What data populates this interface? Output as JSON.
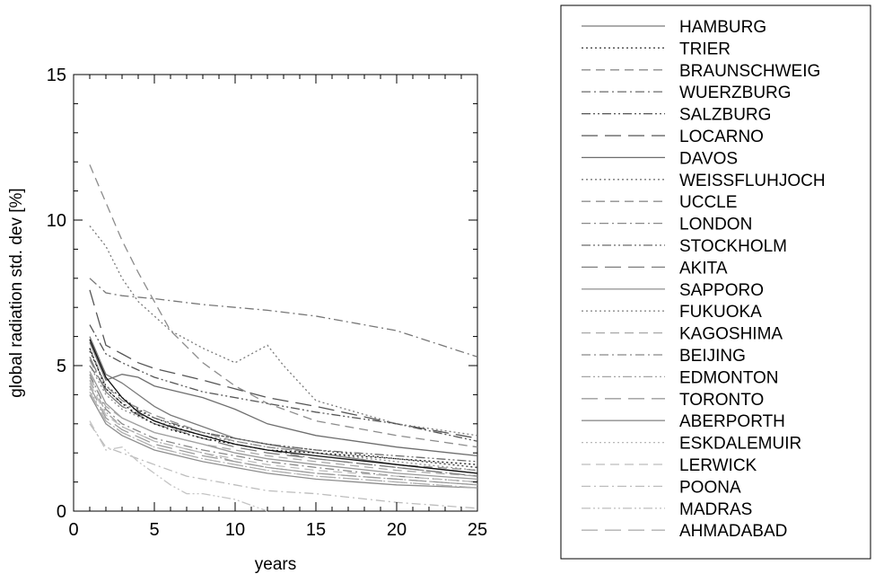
{
  "chart_data": {
    "type": "line",
    "title": "",
    "xlabel": "years",
    "ylabel": "global radiation std. dev [%]",
    "xlim": [
      0,
      25
    ],
    "ylim": [
      0,
      15
    ],
    "xticks": [
      "0",
      "5",
      "10",
      "15",
      "20",
      "25"
    ],
    "yticks": [
      "0",
      "5",
      "10",
      "15"
    ],
    "grid": false,
    "legend_position": "right",
    "series": [
      {
        "name": "HAMBURG",
        "dash": "",
        "color": "#7a7a7a",
        "x": [
          1,
          2,
          3,
          4,
          5,
          6,
          8,
          10,
          12,
          15,
          20,
          25
        ],
        "y": [
          6.0,
          4.7,
          4.4,
          4.0,
          3.6,
          3.3,
          2.9,
          2.5,
          2.3,
          2.0,
          1.6,
          1.3
        ]
      },
      {
        "name": "TRIER",
        "dash": "2,3",
        "color": "#3a3a3a",
        "x": [
          1,
          2,
          3,
          4,
          5,
          6,
          8,
          10,
          12,
          15,
          20,
          25
        ],
        "y": [
          5.5,
          4.3,
          3.9,
          3.5,
          3.2,
          3.0,
          2.7,
          2.5,
          2.3,
          2.1,
          1.8,
          1.5
        ]
      },
      {
        "name": "BRAUNSCHWEIG",
        "dash": "10,6",
        "color": "#8c8c8c",
        "x": [
          1,
          2,
          3,
          4,
          5,
          6,
          8,
          10,
          12,
          15,
          20,
          25
        ],
        "y": [
          11.9,
          10.6,
          9.3,
          8.2,
          7.2,
          6.2,
          5.1,
          4.3,
          3.7,
          3.1,
          2.6,
          2.2
        ]
      },
      {
        "name": "WUERZBURG",
        "dash": "10,4,2,4",
        "color": "#777777",
        "x": [
          1,
          2,
          3,
          5,
          8,
          10,
          12,
          15,
          20,
          25
        ],
        "y": [
          8.0,
          7.5,
          7.4,
          7.3,
          7.1,
          7.0,
          6.9,
          6.7,
          6.2,
          5.3
        ]
      },
      {
        "name": "SALZBURG",
        "dash": "10,3,2,3,2,3",
        "color": "#555555",
        "x": [
          1,
          2,
          3,
          5,
          8,
          10,
          12,
          15,
          20,
          25
        ],
        "y": [
          6.4,
          5.4,
          5.1,
          4.6,
          4.1,
          3.9,
          3.7,
          3.4,
          3.0,
          2.4
        ]
      },
      {
        "name": "LOCARNO",
        "dash": "18,8",
        "color": "#555555",
        "x": [
          1,
          2,
          3,
          4,
          5,
          8,
          10,
          12,
          15,
          20,
          25
        ],
        "y": [
          7.6,
          5.7,
          5.4,
          5.1,
          4.9,
          4.5,
          4.2,
          3.9,
          3.6,
          3.0,
          2.5
        ]
      },
      {
        "name": "DAVOS",
        "dash": "",
        "color": "#6e6e6e",
        "x": [
          1,
          2,
          3,
          4,
          5,
          8,
          10,
          12,
          15,
          20,
          25
        ],
        "y": [
          5.8,
          4.5,
          4.7,
          4.6,
          4.3,
          3.9,
          3.5,
          3.0,
          2.6,
          2.2,
          1.9
        ]
      },
      {
        "name": "WEISSFLUHJOCH",
        "dash": "2,3",
        "color": "#7a7a7a",
        "x": [
          1,
          2,
          3,
          4,
          5,
          6,
          8,
          10,
          12,
          13,
          15,
          20,
          25
        ],
        "y": [
          9.8,
          9.1,
          8.0,
          7.2,
          6.7,
          6.2,
          5.6,
          5.1,
          5.7,
          5.0,
          3.8,
          3.0,
          2.6
        ]
      },
      {
        "name": "UCCLE",
        "dash": "10,6",
        "color": "#8f8f8f",
        "x": [
          1,
          2,
          3,
          5,
          8,
          10,
          12,
          15,
          20,
          25
        ],
        "y": [
          5.6,
          4.3,
          3.8,
          3.3,
          2.7,
          2.4,
          2.2,
          2.0,
          1.6,
          1.4
        ]
      },
      {
        "name": "LONDON",
        "dash": "10,4,2,4",
        "color": "#8a8a8a",
        "x": [
          1,
          2,
          3,
          5,
          8,
          10,
          12,
          15,
          20,
          25
        ],
        "y": [
          5.2,
          4.1,
          3.6,
          3.1,
          2.6,
          2.3,
          2.1,
          1.8,
          1.5,
          1.2
        ]
      },
      {
        "name": "STOCKHOLM",
        "dash": "10,3,2,3,2,3",
        "color": "#6a6a6a",
        "x": [
          1,
          2,
          3,
          5,
          8,
          10,
          12,
          15,
          20,
          25
        ],
        "y": [
          5.0,
          4.2,
          3.7,
          3.2,
          2.7,
          2.5,
          2.3,
          2.1,
          1.9,
          1.7
        ]
      },
      {
        "name": "AKITA",
        "dash": "18,8",
        "color": "#7d7d7d",
        "x": [
          1,
          2,
          3,
          5,
          8,
          10,
          12,
          15,
          20,
          25
        ],
        "y": [
          5.3,
          4.1,
          3.6,
          3.0,
          2.5,
          2.2,
          2.0,
          1.8,
          1.5,
          1.2
        ]
      },
      {
        "name": "SAPPORO",
        "dash": "",
        "color": "#9a9a9a",
        "x": [
          1,
          2,
          3,
          5,
          8,
          10,
          12,
          15,
          20,
          25
        ],
        "y": [
          4.8,
          3.7,
          3.2,
          2.7,
          2.3,
          2.0,
          1.8,
          1.6,
          1.3,
          1.1
        ]
      },
      {
        "name": "FUKUOKA",
        "dash": "2,3",
        "color": "#8c8c8c",
        "x": [
          1,
          2,
          3,
          5,
          8,
          10,
          12,
          15,
          20,
          25
        ],
        "y": [
          5.0,
          4.0,
          3.5,
          3.0,
          2.6,
          2.4,
          2.2,
          2.0,
          1.7,
          1.4
        ]
      },
      {
        "name": "KAGOSHIMA",
        "dash": "10,6",
        "color": "#a8a8a8",
        "x": [
          1,
          2,
          3,
          5,
          8,
          10,
          12,
          15,
          20,
          25
        ],
        "y": [
          4.6,
          3.6,
          3.2,
          2.7,
          2.3,
          2.1,
          1.9,
          1.7,
          1.4,
          1.2
        ]
      },
      {
        "name": "BEIJING",
        "dash": "10,4,2,4",
        "color": "#888888",
        "x": [
          1,
          2,
          3,
          5,
          8,
          10,
          12,
          15,
          20,
          25
        ],
        "y": [
          4.7,
          3.5,
          3.0,
          2.5,
          2.1,
          1.9,
          1.7,
          1.5,
          1.2,
          1.0
        ]
      },
      {
        "name": "EDMONTON",
        "dash": "10,3,2,3,2,3",
        "color": "#a4a4a4",
        "x": [
          1,
          2,
          3,
          5,
          8,
          10,
          12,
          15,
          20,
          25
        ],
        "y": [
          4.5,
          3.4,
          2.9,
          2.4,
          2.0,
          1.7,
          1.5,
          1.3,
          1.1,
          0.9
        ]
      },
      {
        "name": "TORONTO",
        "dash": "18,8",
        "color": "#9c9c9c",
        "x": [
          1,
          2,
          3,
          5,
          8,
          10,
          12,
          15,
          20,
          25
        ],
        "y": [
          4.3,
          3.2,
          2.8,
          2.3,
          1.9,
          1.7,
          1.5,
          1.3,
          1.1,
          0.9
        ]
      },
      {
        "name": "ABERPORTH",
        "dash": "",
        "color": "#8e8e8e",
        "x": [
          1,
          2,
          3,
          5,
          8,
          10,
          12,
          15,
          20,
          25
        ],
        "y": [
          4.0,
          3.0,
          2.6,
          2.1,
          1.7,
          1.5,
          1.3,
          1.1,
          0.9,
          0.8
        ]
      },
      {
        "name": "ESKDALEMUIR",
        "dash": "2,3",
        "color": "#b8b8b8",
        "x": [
          1,
          2,
          3,
          5,
          8,
          10,
          12,
          15,
          20,
          25
        ],
        "y": [
          4.2,
          3.1,
          2.7,
          2.2,
          1.8,
          1.6,
          1.4,
          1.2,
          1.0,
          0.8
        ]
      },
      {
        "name": "LERWICK",
        "dash": "10,6",
        "color": "#bcbcbc",
        "x": [
          1,
          2,
          3,
          5,
          8,
          10,
          12,
          15,
          20,
          25
        ],
        "y": [
          4.4,
          3.3,
          2.9,
          2.4,
          2.0,
          1.8,
          1.6,
          1.4,
          1.2,
          1.0
        ]
      },
      {
        "name": "POONA",
        "dash": "10,4,2,4",
        "color": "#bdbdbd",
        "x": [
          1,
          2,
          3,
          5,
          7,
          10,
          12,
          15,
          20,
          25
        ],
        "y": [
          3.0,
          2.2,
          2.0,
          1.6,
          1.2,
          0.9,
          0.7,
          0.6,
          0.3,
          0.1
        ]
      },
      {
        "name": "MADRAS",
        "dash": "10,3,2,3,2,3",
        "color": "#c4c4c4",
        "x": [
          1,
          2,
          3,
          4,
          5,
          6,
          7,
          8,
          9,
          10,
          11,
          12
        ],
        "y": [
          3.1,
          2.1,
          2.2,
          1.7,
          1.3,
          0.9,
          0.6,
          0.6,
          0.5,
          0.4,
          0.2,
          0.0
        ]
      },
      {
        "name": "AHMADABAD",
        "dash": "18,8",
        "color": "#b0b0b0",
        "x": [
          1,
          2,
          3,
          5,
          8,
          10,
          12,
          15,
          20,
          25
        ],
        "y": [
          4.1,
          3.1,
          2.7,
          2.2,
          1.8,
          1.6,
          1.4,
          1.2,
          1.0,
          0.8
        ]
      }
    ],
    "overlay_series": [
      {
        "dash": "",
        "color": "#111111",
        "x": [
          1,
          2,
          3,
          4,
          5,
          6,
          8,
          10,
          12,
          15,
          20,
          25
        ],
        "y": [
          5.9,
          4.6,
          3.9,
          3.4,
          3.1,
          2.9,
          2.6,
          2.3,
          2.1,
          1.9,
          1.6,
          1.3
        ]
      },
      {
        "dash": "2,3",
        "color": "#111111",
        "x": [
          1,
          2,
          3,
          4,
          5,
          6,
          8,
          10,
          12,
          15,
          20,
          25
        ],
        "y": [
          5.6,
          4.2,
          3.7,
          3.3,
          3.0,
          2.8,
          2.5,
          2.3,
          2.1,
          2.0,
          1.8,
          1.6
        ]
      }
    ]
  }
}
